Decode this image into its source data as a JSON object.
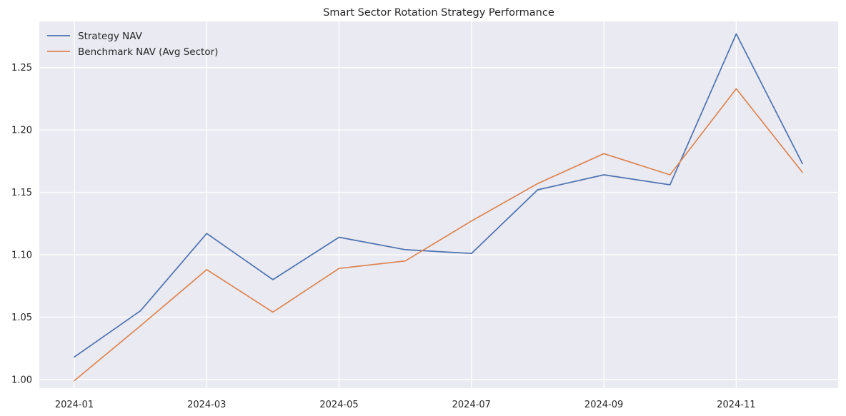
{
  "chart_data": {
    "type": "line",
    "title": "Smart Sector Rotation Strategy Performance",
    "xlabel": "",
    "ylabel": "",
    "x": [
      "2024-01",
      "2024-02",
      "2024-03",
      "2024-04",
      "2024-05",
      "2024-06",
      "2024-07",
      "2024-08",
      "2024-09",
      "2024-10",
      "2024-11",
      "2024-12"
    ],
    "x_ticks": [
      "2024-01",
      "2024-03",
      "2024-05",
      "2024-07",
      "2024-09",
      "2024-11"
    ],
    "y_ticks": [
      "1.00",
      "1.05",
      "1.10",
      "1.15",
      "1.20",
      "1.25"
    ],
    "ylim": [
      0.993,
      1.287
    ],
    "grid": true,
    "legend_position": "top-left",
    "series": [
      {
        "name": "Strategy NAV",
        "color": "#4c72b0",
        "values": [
          1.018,
          1.055,
          1.117,
          1.08,
          1.114,
          1.104,
          1.101,
          1.152,
          1.164,
          1.156,
          1.277,
          1.173
        ]
      },
      {
        "name": "Benchmark NAV (Avg Sector)",
        "color": "#dd8452",
        "values": [
          0.999,
          1.043,
          1.088,
          1.054,
          1.089,
          1.095,
          1.127,
          1.157,
          1.181,
          1.164,
          1.233,
          1.166
        ]
      }
    ]
  }
}
